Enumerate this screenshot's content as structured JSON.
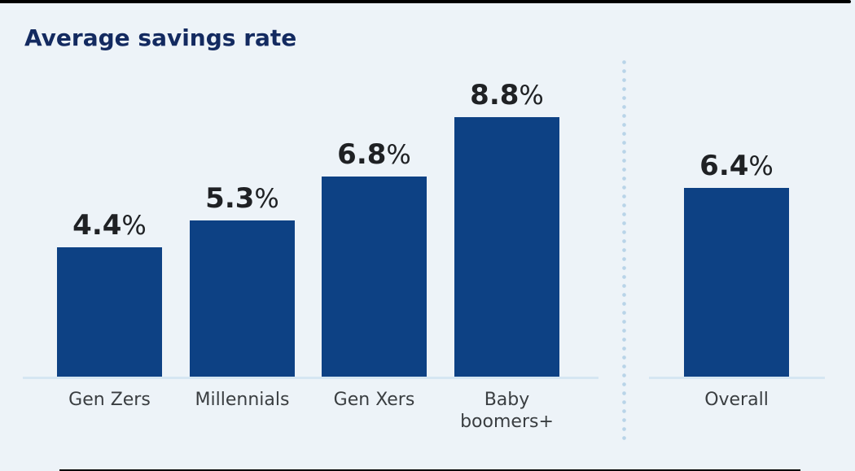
{
  "page": {
    "background_color": "#edf3f8",
    "edge_line_color": "#000000"
  },
  "chart_data": {
    "type": "bar",
    "title": "Average savings rate",
    "unit": "%",
    "categories": [
      "Gen Zers",
      "Millennials",
      "Gen Xers",
      "Baby boomers+",
      "Overall"
    ],
    "values": [
      4.4,
      5.3,
      6.8,
      8.8,
      6.4
    ],
    "groups": [
      {
        "label": "Gen Zers",
        "label_lines": [
          "Gen Zers"
        ],
        "value": 4.4,
        "display": "4.4%",
        "section": "generations"
      },
      {
        "label": "Millennials",
        "label_lines": [
          "Millennials"
        ],
        "value": 5.3,
        "display": "5.3%",
        "section": "generations"
      },
      {
        "label": "Gen Xers",
        "label_lines": [
          "Gen Xers"
        ],
        "value": 6.8,
        "display": "6.8%",
        "section": "generations"
      },
      {
        "label": "Baby boomers+",
        "label_lines": [
          "Baby",
          "boomers+"
        ],
        "value": 8.8,
        "display": "8.8%",
        "section": "generations"
      },
      {
        "label": "Overall",
        "label_lines": [
          "Overall"
        ],
        "value": 6.4,
        "display": "6.4%",
        "section": "overall"
      }
    ],
    "ylim": [
      0,
      9.5
    ],
    "axes": "hidden (baseline only, values shown as data labels)",
    "legend": "none",
    "grid": false,
    "colors": {
      "bar": "#0d4184",
      "title": "#132a60",
      "value_label": "#1f2124",
      "category_label": "#3a3e41",
      "baseline": "#d5e6f2",
      "divider_dots": "#b9d4e8"
    }
  }
}
